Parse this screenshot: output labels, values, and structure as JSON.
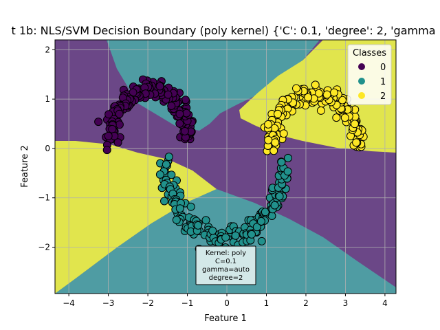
{
  "chart_data": {
    "type": "scatter",
    "title": "t 1b: NLS/SVM Decision Boundary (poly kernel) {'C': 0.1, 'degree': 2, 'gamma",
    "xlabel": "Feature 1",
    "ylabel": "Feature 2",
    "xlim": [
      -4.35,
      4.28
    ],
    "ylim": [
      -2.94,
      2.2
    ],
    "xticks": [
      -4,
      -3,
      -2,
      -1,
      0,
      1,
      2,
      3,
      4
    ],
    "yticks": [
      -2,
      -1,
      0,
      1,
      2
    ],
    "xtick_labels": [
      "−4",
      "−3",
      "−2",
      "−1",
      "0",
      "1",
      "2",
      "3",
      "4"
    ],
    "ytick_labels": [
      "−2",
      "−1",
      "0",
      "1",
      "2"
    ],
    "grid": true,
    "legend": {
      "title": "Classes",
      "placement": "top-right",
      "entries": [
        {
          "label": "0",
          "color": "#440154"
        },
        {
          "label": "1",
          "color": "#21918c"
        },
        {
          "label": "2",
          "color": "#fde725"
        }
      ]
    },
    "region_colors": {
      "0": "#6b4787",
      "1": "#4f9ca3",
      "2": "#e1e54d"
    },
    "annotation": [
      "Kernel: poly",
      "C=0.1",
      "gamma=auto",
      "degree=2"
    ],
    "series": [
      {
        "class": "0",
        "color": "#440154",
        "shape": "upper-arc",
        "center": [
          -1.95,
          0.2
        ],
        "radius": 0.98,
        "angle_range_deg": [
          0,
          180
        ],
        "noise": 0.1,
        "approx_points": 190
      },
      {
        "class": "1",
        "color": "#21918c",
        "shape": "lower-arc",
        "center": [
          -0.05,
          -0.3
        ],
        "radius": 1.5,
        "angle_range_deg": [
          180,
          360
        ],
        "noise": 0.1,
        "approx_points": 190
      },
      {
        "class": "2",
        "color": "#fde725",
        "shape": "upper-arc",
        "center": [
          2.2,
          0.0
        ],
        "radius": 1.1,
        "angle_range_deg": [
          0,
          180
        ],
        "noise": 0.1,
        "approx_points": 170
      }
    ]
  }
}
